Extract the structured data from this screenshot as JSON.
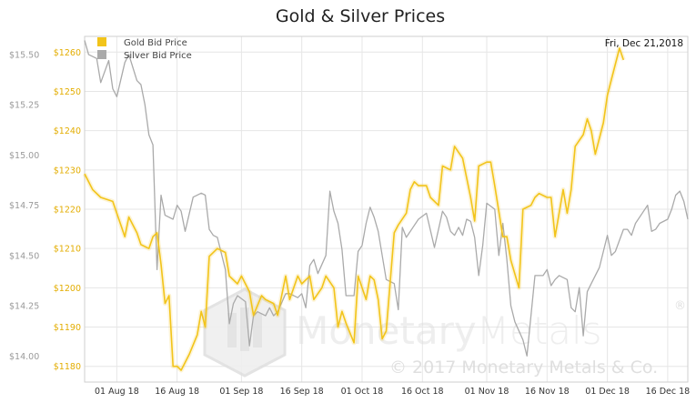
{
  "colors": {
    "gold": "#f2c41a",
    "silver": "#aaaaaa",
    "grid": "#e6e6e6",
    "frame": "#cfcfcf",
    "gold_text": "#e3ad00",
    "silver_text": "#9a9a9a",
    "watermark": "#dcdcdc"
  },
  "watermark": {
    "brand": "MonetaryMetals",
    "brand_part1": "Monetary",
    "brand_part2": "Metals",
    "registered": "®",
    "copyright": "© 2017 Monetary Metals & Co."
  },
  "chart_data": {
    "type": "line",
    "title": "Gold & Silver Prices",
    "date_label": "Fri, Dec 21,2018",
    "legend_position": "top-left",
    "grid": true,
    "x_ticks": [
      {
        "day": 8,
        "label": "01 Aug 18"
      },
      {
        "day": 23,
        "label": "16 Aug 18"
      },
      {
        "day": 39,
        "label": "01 Sep 18"
      },
      {
        "day": 54,
        "label": "16 Sep 18"
      },
      {
        "day": 69,
        "label": "01 Oct 18"
      },
      {
        "day": 84,
        "label": "16 Oct 18"
      },
      {
        "day": 100,
        "label": "01 Nov 18"
      },
      {
        "day": 115,
        "label": "16 Nov 18"
      },
      {
        "day": 130,
        "label": "01 Dec 18"
      },
      {
        "day": 145,
        "label": "16 Dec 18"
      }
    ],
    "x_range": [
      0,
      150
    ],
    "y_left": {
      "min": 1176,
      "max": 1264,
      "ticks": [
        1180,
        1190,
        1200,
        1210,
        1220,
        1230,
        1240,
        1250,
        1260
      ],
      "prefix": "$"
    },
    "y_right": {
      "min": 13.87,
      "max": 15.59,
      "ticks": [
        14.0,
        14.25,
        14.5,
        14.75,
        15.0,
        15.25,
        15.5
      ],
      "prefix": "$"
    },
    "series": [
      {
        "name": "Gold Bid Price",
        "axis": "left",
        "points": [
          [
            0,
            1229
          ],
          [
            2,
            1225
          ],
          [
            4,
            1223
          ],
          [
            7,
            1222
          ],
          [
            9,
            1216
          ],
          [
            10,
            1213
          ],
          [
            11,
            1218
          ],
          [
            13,
            1214
          ],
          [
            14,
            1211
          ],
          [
            16,
            1210
          ],
          [
            17,
            1213
          ],
          [
            18,
            1214
          ],
          [
            19,
            1206
          ],
          [
            20,
            1196
          ],
          [
            21,
            1198
          ],
          [
            22,
            1180
          ],
          [
            23,
            1180
          ],
          [
            24,
            1179
          ],
          [
            26,
            1183
          ],
          [
            28,
            1188
          ],
          [
            29,
            1194
          ],
          [
            30,
            1190
          ],
          [
            31,
            1208
          ],
          [
            33,
            1210
          ],
          [
            35,
            1209
          ],
          [
            36,
            1203
          ],
          [
            38,
            1201
          ],
          [
            39,
            1203
          ],
          [
            41,
            1199
          ],
          [
            42,
            1193
          ],
          [
            44,
            1198
          ],
          [
            45,
            1197
          ],
          [
            47,
            1196
          ],
          [
            48,
            1193
          ],
          [
            50,
            1203
          ],
          [
            51,
            1197
          ],
          [
            53,
            1203
          ],
          [
            54,
            1201
          ],
          [
            56,
            1203
          ],
          [
            57,
            1197
          ],
          [
            59,
            1200
          ],
          [
            60,
            1203
          ],
          [
            62,
            1200
          ],
          [
            63,
            1190
          ],
          [
            64,
            1194
          ],
          [
            65,
            1191
          ],
          [
            67,
            1186
          ],
          [
            68,
            1203
          ],
          [
            70,
            1197
          ],
          [
            71,
            1203
          ],
          [
            72,
            1202
          ],
          [
            73,
            1197
          ],
          [
            74,
            1187
          ],
          [
            75,
            1189
          ],
          [
            77,
            1214
          ],
          [
            78,
            1216
          ],
          [
            80,
            1219
          ],
          [
            81,
            1225
          ],
          [
            82,
            1227
          ],
          [
            83,
            1226
          ],
          [
            85,
            1226
          ],
          [
            86,
            1223
          ],
          [
            88,
            1221
          ],
          [
            89,
            1231
          ],
          [
            91,
            1230
          ],
          [
            92,
            1236
          ],
          [
            94,
            1233
          ],
          [
            95,
            1228
          ],
          [
            96,
            1223
          ],
          [
            97,
            1217
          ],
          [
            98,
            1231
          ],
          [
            100,
            1232
          ],
          [
            101,
            1232
          ],
          [
            102,
            1226
          ],
          [
            104,
            1213
          ],
          [
            105,
            1213
          ],
          [
            106,
            1207
          ],
          [
            108,
            1200
          ],
          [
            109,
            1220
          ],
          [
            111,
            1221
          ],
          [
            112,
            1223
          ],
          [
            113,
            1224
          ],
          [
            115,
            1223
          ],
          [
            116,
            1223
          ],
          [
            117,
            1213
          ],
          [
            119,
            1225
          ],
          [
            120,
            1219
          ],
          [
            121,
            1225
          ],
          [
            122,
            1236
          ],
          [
            124,
            1239
          ],
          [
            125,
            1243
          ],
          [
            126,
            1240
          ],
          [
            127,
            1234
          ],
          [
            129,
            1242
          ],
          [
            130,
            1249
          ],
          [
            131,
            1253
          ],
          [
            133,
            1261
          ],
          [
            134,
            1258
          ]
        ]
      },
      {
        "name": "Silver Bid Price",
        "axis": "right",
        "points": [
          [
            0,
            15.57
          ],
          [
            1,
            15.5
          ],
          [
            3,
            15.48
          ],
          [
            4,
            15.36
          ],
          [
            6,
            15.47
          ],
          [
            7,
            15.33
          ],
          [
            8,
            15.29
          ],
          [
            10,
            15.46
          ],
          [
            11,
            15.5
          ],
          [
            13,
            15.37
          ],
          [
            14,
            15.35
          ],
          [
            15,
            15.25
          ],
          [
            16,
            15.1
          ],
          [
            17,
            15.05
          ],
          [
            18,
            14.43
          ],
          [
            19,
            14.8
          ],
          [
            20,
            14.7
          ],
          [
            22,
            14.68
          ],
          [
            23,
            14.75
          ],
          [
            24,
            14.72
          ],
          [
            25,
            14.62
          ],
          [
            27,
            14.79
          ],
          [
            29,
            14.81
          ],
          [
            30,
            14.8
          ],
          [
            31,
            14.63
          ],
          [
            32,
            14.6
          ],
          [
            33,
            14.59
          ],
          [
            35,
            14.43
          ],
          [
            36,
            14.16
          ],
          [
            37,
            14.26
          ],
          [
            38,
            14.3
          ],
          [
            40,
            14.27
          ],
          [
            41,
            14.05
          ],
          [
            42,
            14.2
          ],
          [
            43,
            14.22
          ],
          [
            45,
            14.2
          ],
          [
            46,
            14.24
          ],
          [
            47,
            14.2
          ],
          [
            48,
            14.22
          ],
          [
            50,
            14.31
          ],
          [
            51,
            14.31
          ],
          [
            53,
            14.29
          ],
          [
            54,
            14.31
          ],
          [
            55,
            14.24
          ],
          [
            56,
            14.45
          ],
          [
            57,
            14.48
          ],
          [
            58,
            14.41
          ],
          [
            60,
            14.5
          ],
          [
            61,
            14.82
          ],
          [
            62,
            14.72
          ],
          [
            63,
            14.66
          ],
          [
            64,
            14.53
          ],
          [
            65,
            14.3
          ],
          [
            66,
            14.3
          ],
          [
            67,
            14.3
          ],
          [
            68,
            14.52
          ],
          [
            69,
            14.55
          ],
          [
            70,
            14.66
          ],
          [
            71,
            14.74
          ],
          [
            72,
            14.69
          ],
          [
            73,
            14.62
          ],
          [
            75,
            14.38
          ],
          [
            77,
            14.36
          ],
          [
            78,
            14.23
          ],
          [
            79,
            14.64
          ],
          [
            80,
            14.59
          ],
          [
            81,
            14.62
          ],
          [
            83,
            14.68
          ],
          [
            85,
            14.71
          ],
          [
            87,
            14.54
          ],
          [
            88,
            14.63
          ],
          [
            89,
            14.72
          ],
          [
            90,
            14.69
          ],
          [
            91,
            14.62
          ],
          [
            92,
            14.6
          ],
          [
            93,
            14.64
          ],
          [
            94,
            14.6
          ],
          [
            95,
            14.68
          ],
          [
            96,
            14.67
          ],
          [
            97,
            14.59
          ],
          [
            98,
            14.4
          ],
          [
            99,
            14.55
          ],
          [
            100,
            14.76
          ],
          [
            102,
            14.73
          ],
          [
            103,
            14.5
          ],
          [
            104,
            14.66
          ],
          [
            105,
            14.48
          ],
          [
            106,
            14.25
          ],
          [
            107,
            14.17
          ],
          [
            109,
            14.08
          ],
          [
            110,
            14.0
          ],
          [
            112,
            14.4
          ],
          [
            114,
            14.4
          ],
          [
            115,
            14.43
          ],
          [
            116,
            14.35
          ],
          [
            117,
            14.38
          ],
          [
            118,
            14.4
          ],
          [
            120,
            14.38
          ],
          [
            121,
            14.24
          ],
          [
            122,
            14.22
          ],
          [
            123,
            14.34
          ],
          [
            124,
            14.1
          ],
          [
            125,
            14.32
          ],
          [
            126,
            14.36
          ],
          [
            128,
            14.44
          ],
          [
            129,
            14.52
          ],
          [
            130,
            14.6
          ],
          [
            131,
            14.5
          ],
          [
            132,
            14.52
          ],
          [
            134,
            14.63
          ],
          [
            135,
            14.63
          ],
          [
            136,
            14.6
          ],
          [
            137,
            14.66
          ],
          [
            139,
            14.72
          ],
          [
            140,
            14.75
          ],
          [
            141,
            14.62
          ],
          [
            142,
            14.63
          ],
          [
            143,
            14.66
          ],
          [
            145,
            14.68
          ],
          [
            146,
            14.73
          ],
          [
            147,
            14.8
          ],
          [
            148,
            14.82
          ],
          [
            149,
            14.77
          ],
          [
            150,
            14.68
          ]
        ]
      }
    ]
  }
}
